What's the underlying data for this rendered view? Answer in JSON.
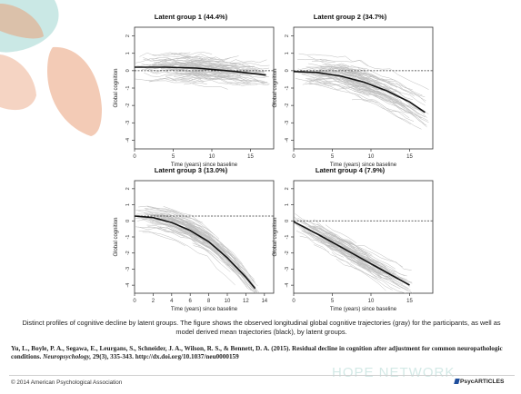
{
  "slide": {
    "caption": "Distinct profiles of cognitive decline by latent groups. The figure shows the observed longitudinal global cognitive trajectories (gray) for the participants, as well as model derived mean trajectories (black), by latent groups.",
    "citation": {
      "authors": "Yu, L., Boyle, P. A., Segawa, E., Leurgans, S., Schneider, J. A., Wilson, R. S., & Bennett, D. A. (2015). Residual decline in cognition after adjustment for common neuropathologic conditions.",
      "journal": "Neuropsychology,",
      "details": "29(3), 335-343. http://dx.doi.org/10.1037/neu0000159"
    },
    "copyright": "© 2014 American Psychological Association",
    "logo": "PsycARTICLES",
    "watermark": "HOPE NETWORK"
  },
  "colors": {
    "petal_teal": "#9fd5cf",
    "petal_orange": "#e9a07a",
    "trajectories": "#a8a8a8",
    "mean_line": "#111111",
    "reference_line": "#333333"
  },
  "chart_data": [
    {
      "type": "line",
      "title": "Latent group 1 (44.4%)",
      "xlabel": "Time (years) since baseline",
      "ylabel": "Global cognition",
      "xlim": [
        0,
        18
      ],
      "ylim": [
        -4.5,
        2.5
      ],
      "xticks": [
        0,
        5,
        10,
        15
      ],
      "yticks": [
        2,
        1,
        0,
        -1,
        -2,
        -3,
        -4
      ],
      "grid": false,
      "series": [
        {
          "x": [
            0,
            4,
            8,
            12,
            15,
            17
          ],
          "y": [
            0.2,
            0.2,
            0.15,
            0.0,
            -0.15,
            -0.25
          ]
        }
      ],
      "reference_y": 0
    },
    {
      "type": "line",
      "title": "Latent group 2 (34.7%)",
      "xlabel": "Time (years) since baseline",
      "ylabel": "Global cognition",
      "xlim": [
        0,
        18
      ],
      "ylim": [
        -4.5,
        2.5
      ],
      "xticks": [
        0,
        5,
        10,
        15
      ],
      "yticks": [
        2,
        1,
        0,
        -1,
        -2,
        -3,
        -4
      ],
      "grid": false,
      "series": [
        {
          "x": [
            0,
            3,
            6,
            9,
            12,
            15,
            17
          ],
          "y": [
            -0.05,
            -0.1,
            -0.3,
            -0.65,
            -1.15,
            -1.8,
            -2.4
          ]
        }
      ],
      "reference_y": 0
    },
    {
      "type": "line",
      "title": "Latent group 3 (13.0%)",
      "xlabel": "Time (years) since baseline",
      "ylabel": "Global cognition",
      "xlim": [
        0,
        15
      ],
      "ylim": [
        -4.5,
        2.5
      ],
      "xticks": [
        0,
        2,
        4,
        6,
        8,
        10,
        12,
        14
      ],
      "yticks": [
        2,
        1,
        0,
        -1,
        -2,
        -3,
        -4
      ],
      "grid": false,
      "series": [
        {
          "x": [
            0,
            2,
            4,
            6,
            8,
            10,
            12,
            13
          ],
          "y": [
            0.3,
            0.2,
            -0.1,
            -0.6,
            -1.3,
            -2.3,
            -3.5,
            -4.2
          ]
        }
      ],
      "reference_y": 0.3
    },
    {
      "type": "line",
      "title": "Latent group 4 (7.9%)",
      "xlabel": "Time (years) since baseline",
      "ylabel": "Global cognition",
      "xlim": [
        0,
        18
      ],
      "ylim": [
        -4.5,
        2.5
      ],
      "xticks": [
        0,
        5,
        10,
        15
      ],
      "yticks": [
        2,
        1,
        0,
        -1,
        -2,
        -3,
        -4
      ],
      "grid": false,
      "series": [
        {
          "x": [
            0,
            3,
            6,
            9,
            12,
            15
          ],
          "y": [
            -0.05,
            -0.8,
            -1.6,
            -2.4,
            -3.2,
            -4.0
          ]
        }
      ],
      "reference_y": 0
    }
  ]
}
